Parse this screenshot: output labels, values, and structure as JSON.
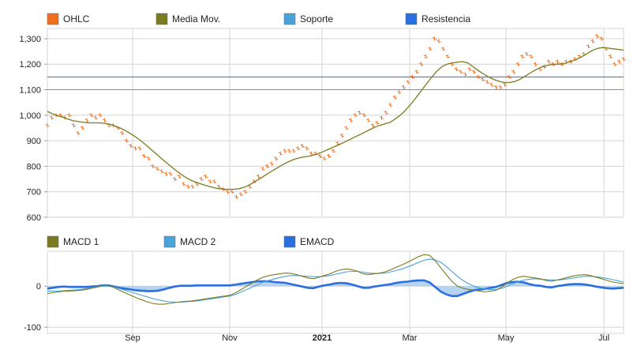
{
  "chart_data": [
    {
      "type": "line",
      "panel": "price",
      "legend": [
        {
          "label": "OHLC",
          "color": "#f07020",
          "icon": "swatch-square"
        },
        {
          "label": "Media Mov.",
          "color": "#7a7a20",
          "icon": "swatch-square"
        },
        {
          "label": "Soporte",
          "color": "#4aa3d8",
          "icon": "swatch-square"
        },
        {
          "label": "Resistencia",
          "color": "#2a6ee0",
          "icon": "swatch-square"
        }
      ],
      "x_ticks": [
        "Sep",
        "Nov",
        "2021",
        "Mar",
        "May",
        "Jul"
      ],
      "x_tick_bold": [
        false,
        false,
        true,
        false,
        false,
        false
      ],
      "y_ticks": [
        "1,300",
        "1,200",
        "1,100",
        "1,000",
        "900",
        "800",
        "700",
        "600"
      ],
      "ylim": [
        600,
        1340
      ],
      "grid": true,
      "legend_position": "top",
      "support_level": 1100,
      "resistance_level": 1150,
      "series": [
        {
          "name": "OHLC",
          "style": "ticks",
          "values": [
            960,
            990,
            1000,
            1000,
            990,
            1000,
            960,
            930,
            950,
            980,
            1000,
            990,
            1000,
            980,
            960,
            960,
            950,
            930,
            900,
            880,
            870,
            870,
            840,
            830,
            800,
            790,
            780,
            770,
            770,
            750,
            760,
            730,
            720,
            720,
            730,
            750,
            760,
            740,
            740,
            720,
            710,
            700,
            700,
            680,
            690,
            700,
            720,
            740,
            760,
            790,
            800,
            810,
            830,
            850,
            860,
            860,
            860,
            870,
            880,
            870,
            850,
            850,
            840,
            830,
            840,
            860,
            890,
            920,
            950,
            980,
            1000,
            1010,
            1000,
            980,
            960,
            970,
            990,
            1010,
            1040,
            1070,
            1090,
            1110,
            1130,
            1150,
            1170,
            1200,
            1230,
            1260,
            1300,
            1290,
            1260,
            1230,
            1200,
            1180,
            1170,
            1160,
            1180,
            1170,
            1150,
            1140,
            1130,
            1120,
            1110,
            1110,
            1120,
            1150,
            1170,
            1200,
            1230,
            1240,
            1230,
            1200,
            1180,
            1190,
            1210,
            1200,
            1210,
            1200,
            1210,
            1210,
            1220,
            1230,
            1240,
            1270,
            1290,
            1310,
            1300,
            1260,
            1230,
            1200,
            1210,
            1220
          ]
        },
        {
          "name": "Media Mov.",
          "style": "line",
          "values": [
            1015,
            1005,
            998,
            992,
            985,
            978,
            975,
            972,
            970,
            970,
            970,
            968,
            965,
            958,
            950,
            940,
            928,
            915,
            900,
            883,
            865,
            848,
            830,
            813,
            796,
            780,
            765,
            752,
            742,
            735,
            728,
            722,
            716,
            712,
            710,
            710,
            710,
            712,
            718,
            728,
            740,
            752,
            765,
            778,
            790,
            802,
            813,
            823,
            830,
            835,
            838,
            842,
            848,
            856,
            865,
            874,
            883,
            892,
            902,
            912,
            922,
            932,
            942,
            952,
            960,
            966,
            972,
            985,
            1000,
            1020,
            1043,
            1068,
            1095,
            1122,
            1148,
            1172,
            1190,
            1200,
            1205,
            1208,
            1210,
            1205,
            1190,
            1175,
            1162,
            1150,
            1140,
            1133,
            1128,
            1128,
            1132,
            1140,
            1152,
            1165,
            1177,
            1187,
            1194,
            1198,
            1200,
            1200,
            1205,
            1212,
            1220,
            1230,
            1242,
            1254,
            1262,
            1265,
            1263,
            1260,
            1258,
            1255
          ]
        }
      ]
    },
    {
      "type": "line",
      "panel": "macd",
      "legend": [
        {
          "label": "MACD 1",
          "color": "#7a7a20",
          "icon": "swatch-square"
        },
        {
          "label": "MACD 2",
          "color": "#4aa3d8",
          "icon": "swatch-square"
        },
        {
          "label": "EMACD",
          "color": "#2a6ee0",
          "icon": "swatch-square"
        }
      ],
      "y_ticks": [
        "0",
        "-100"
      ],
      "ylim": [
        -115,
        85
      ],
      "grid": true,
      "legend_position": "top",
      "series": [
        {
          "name": "MACD 1",
          "style": "line",
          "values": [
            -18,
            -16,
            -14,
            -12,
            -12,
            -11,
            -10,
            -8,
            -5,
            -2,
            2,
            2,
            -3,
            -10,
            -16,
            -22,
            -28,
            -33,
            -38,
            -42,
            -44,
            -44,
            -42,
            -40,
            -38,
            -37,
            -36,
            -34,
            -32,
            -30,
            -28,
            -26,
            -24,
            -22,
            -16,
            -8,
            0,
            8,
            16,
            22,
            26,
            28,
            30,
            32,
            31,
            28,
            24,
            20,
            18,
            22,
            26,
            30,
            36,
            40,
            42,
            40,
            36,
            30,
            28,
            30,
            32,
            35,
            40,
            46,
            52,
            58,
            65,
            72,
            77,
            75,
            62,
            45,
            28,
            12,
            0,
            -5,
            -8,
            -10,
            -12,
            -14,
            -12,
            -10,
            -2,
            8,
            16,
            22,
            24,
            22,
            20,
            18,
            14,
            12,
            15,
            18,
            22,
            25,
            27,
            28,
            26,
            22,
            18,
            14,
            10,
            8,
            6
          ]
        },
        {
          "name": "MACD 2",
          "style": "line",
          "values": [
            -12,
            -12,
            -12,
            -11,
            -10,
            -9,
            -8,
            -6,
            -4,
            -2,
            0,
            0,
            -2,
            -6,
            -10,
            -14,
            -18,
            -22,
            -26,
            -30,
            -33,
            -36,
            -38,
            -39,
            -39,
            -38,
            -37,
            -36,
            -34,
            -32,
            -30,
            -28,
            -26,
            -24,
            -20,
            -14,
            -8,
            -2,
            4,
            10,
            14,
            18,
            21,
            24,
            26,
            26,
            25,
            24,
            23,
            23,
            24,
            26,
            29,
            32,
            35,
            36,
            36,
            34,
            32,
            31,
            31,
            32,
            35,
            38,
            42,
            47,
            52,
            58,
            63,
            66,
            64,
            58,
            48,
            36,
            24,
            14,
            6,
            0,
            -4,
            -7,
            -8,
            -8,
            -5,
            0,
            6,
            11,
            15,
            17,
            18,
            17,
            16,
            15,
            15,
            16,
            18,
            20,
            22,
            24,
            24,
            23,
            21,
            19,
            16,
            13,
            10
          ]
        },
        {
          "name": "EMACD",
          "style": "area",
          "values": [
            -6,
            -4,
            -2,
            -1,
            -2,
            -2,
            -2,
            -2,
            -1,
            0,
            2,
            2,
            -1,
            -4,
            -6,
            -8,
            -10,
            -11,
            -12,
            -12,
            -11,
            -8,
            -4,
            -1,
            1,
            1,
            1,
            2,
            2,
            2,
            2,
            2,
            2,
            2,
            4,
            6,
            8,
            10,
            12,
            12,
            12,
            10,
            9,
            8,
            5,
            2,
            -1,
            -4,
            -5,
            -1,
            2,
            4,
            7,
            8,
            7,
            4,
            0,
            -4,
            -4,
            -1,
            1,
            3,
            5,
            8,
            10,
            11,
            13,
            14,
            14,
            9,
            -2,
            -13,
            -20,
            -24,
            -24,
            -19,
            -14,
            -10,
            -8,
            -7,
            -4,
            -2,
            3,
            8,
            10,
            11,
            9,
            5,
            2,
            1,
            -2,
            -3,
            0,
            2,
            4,
            5,
            5,
            4,
            2,
            -1,
            -3,
            -5,
            -6,
            -5,
            -4
          ]
        }
      ]
    }
  ]
}
